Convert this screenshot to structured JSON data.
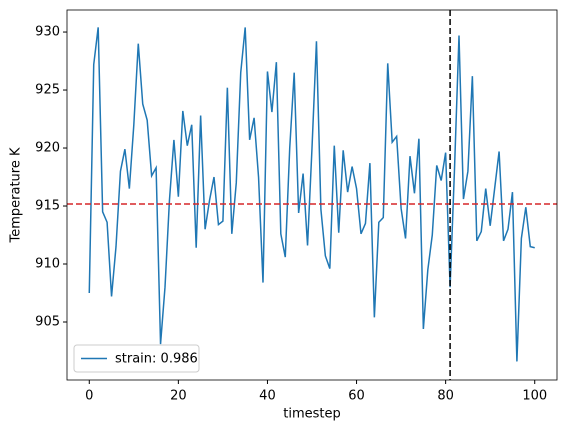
{
  "chart_data": {
    "type": "line",
    "xlabel": "timestep",
    "ylabel": "Temperature K",
    "x": [
      0,
      1,
      2,
      3,
      4,
      5,
      6,
      7,
      8,
      9,
      10,
      11,
      12,
      13,
      14,
      15,
      16,
      17,
      18,
      19,
      20,
      21,
      22,
      23,
      24,
      25,
      26,
      27,
      28,
      29,
      30,
      31,
      32,
      33,
      34,
      35,
      36,
      37,
      38,
      39,
      40,
      41,
      42,
      43,
      44,
      45,
      46,
      47,
      48,
      49,
      50,
      51,
      52,
      53,
      54,
      55,
      56,
      57,
      58,
      59,
      60,
      61,
      62,
      63,
      64,
      65,
      66,
      67,
      68,
      69,
      70,
      71,
      72,
      73,
      74,
      75,
      76,
      77,
      78,
      79,
      80,
      81,
      82,
      83,
      84,
      85,
      86,
      87,
      88,
      89,
      90,
      91,
      92,
      93,
      94,
      95,
      96,
      97,
      98,
      99,
      100
    ],
    "series": [
      {
        "name": "strain: 0.986",
        "color": "#1f77b4",
        "values": [
          907.5,
          927.2,
          930.4,
          914.5,
          913.6,
          907.2,
          911.5,
          918,
          919.9,
          916.5,
          922,
          929,
          923.8,
          922.4,
          917.6,
          918.3,
          903.1,
          908,
          915.5,
          920.7,
          915.8,
          923.2,
          920.2,
          922,
          911.4,
          922.8,
          913,
          915.5,
          917.5,
          913.4,
          913.7,
          925.2,
          912.6,
          917,
          926.5,
          930.4,
          920.7,
          922.6,
          917.5,
          908.4,
          926.6,
          923.1,
          927.4,
          912.6,
          910.6,
          920,
          926.5,
          914.4,
          917.8,
          911.6,
          920,
          929.2,
          914.7,
          910.7,
          909.6,
          920.2,
          912.7,
          919.8,
          916.2,
          918.4,
          916.5,
          912.6,
          913.5,
          918.7,
          905.4,
          913.6,
          914,
          927.3,
          920.5,
          921,
          914.8,
          912.2,
          919.3,
          916.1,
          920.8,
          904.4,
          909.5,
          912.5,
          918.5,
          917.2,
          919.6,
          908,
          918.3,
          929.7,
          915.6,
          918,
          926.2,
          912,
          912.8,
          916.5,
          913.3,
          916.5,
          919.7,
          912,
          913,
          916.2,
          901.6,
          912.2,
          914.9,
          911.5,
          911.4
        ]
      }
    ],
    "hline": {
      "value": 915.17,
      "color": "#d62728"
    },
    "vline": {
      "value": 81,
      "color": "#000000"
    },
    "xlim": [
      -5,
      105
    ],
    "ylim": [
      900,
      931.9
    ],
    "xticks": [
      0,
      20,
      40,
      60,
      80,
      100
    ],
    "yticks": [
      905,
      910,
      915,
      920,
      925,
      930
    ],
    "legend": "lower left"
  }
}
